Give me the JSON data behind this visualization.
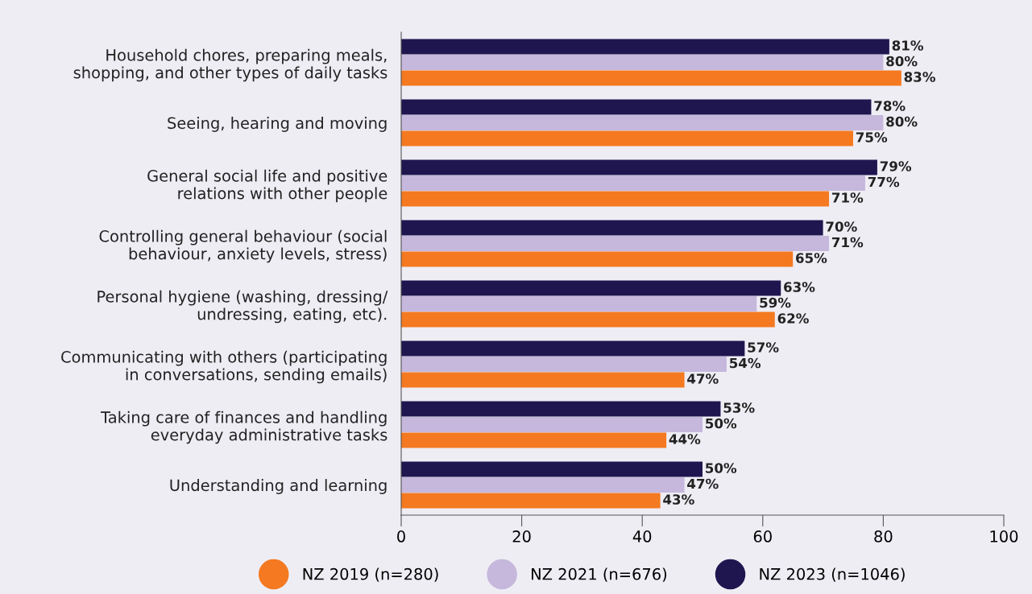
{
  "chart_data": {
    "type": "bar",
    "orientation": "horizontal",
    "categories": [
      "Household chores, preparing meals,\nshopping, and other types of daily tasks",
      "Seeing, hearing and moving",
      "General social life and positive\nrelations with other people",
      "Controlling general behaviour (social\nbehaviour, anxiety levels, stress)",
      "Personal hygiene (washing, dressing/\nundressing, eating, etc).",
      "Communicating with others (participating\nin conversations, sending emails)",
      "Taking care of finances and handling\neveryday administrative tasks",
      "Understanding and learning"
    ],
    "series": [
      {
        "name": "NZ 2019 (n=280)",
        "color": "#f47920",
        "values": [
          83,
          75,
          71,
          65,
          62,
          47,
          44,
          43
        ],
        "value_labels": [
          "83%",
          "75%",
          "71%",
          "65%",
          "62%",
          "47%",
          "44%",
          "43%"
        ]
      },
      {
        "name": "NZ 2021 (n=676)",
        "color": "#c5b8dc",
        "values": [
          80,
          80,
          77,
          71,
          59,
          54,
          50,
          47
        ],
        "value_labels": [
          "80%",
          "80%",
          "77%",
          "71%",
          "59%",
          "54%",
          "50%",
          "47%"
        ]
      },
      {
        "name": "NZ 2023 (n=1046)",
        "color": "#1f1650",
        "values": [
          81,
          78,
          79,
          70,
          63,
          57,
          53,
          50
        ],
        "value_labels": [
          "81%",
          "78%",
          "79%",
          "70%",
          "63%",
          "57%",
          "53%",
          "50%"
        ]
      }
    ],
    "xlim": [
      0,
      100
    ],
    "xticks": [
      0,
      20,
      40,
      60,
      80,
      100
    ],
    "grid": false,
    "legend": "bottom",
    "marker": "circle"
  }
}
